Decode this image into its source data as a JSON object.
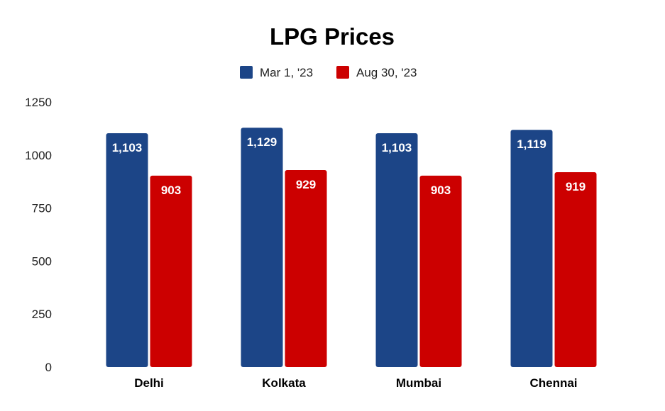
{
  "chart_data": {
    "type": "bar",
    "title": "LPG Prices",
    "xlabel": "",
    "ylabel": "",
    "categories": [
      "Delhi",
      "Kolkata",
      "Mumbai",
      "Chennai"
    ],
    "series": [
      {
        "name": "Mar 1, '23",
        "color": "#1c4587",
        "values": [
          1103,
          1129,
          1103,
          1119
        ],
        "labels": [
          "1,103",
          "1,129",
          "1,103",
          "1,119"
        ]
      },
      {
        "name": "Aug 30, '23",
        "color": "#cc0000",
        "values": [
          903,
          929,
          903,
          919
        ],
        "labels": [
          "903",
          "929",
          "903",
          "919"
        ]
      }
    ],
    "ylim": [
      0,
      1250
    ],
    "yticks": [
      "0",
      "250",
      "500",
      "750",
      "1000",
      "1250"
    ],
    "grid": false,
    "legend": "top"
  }
}
